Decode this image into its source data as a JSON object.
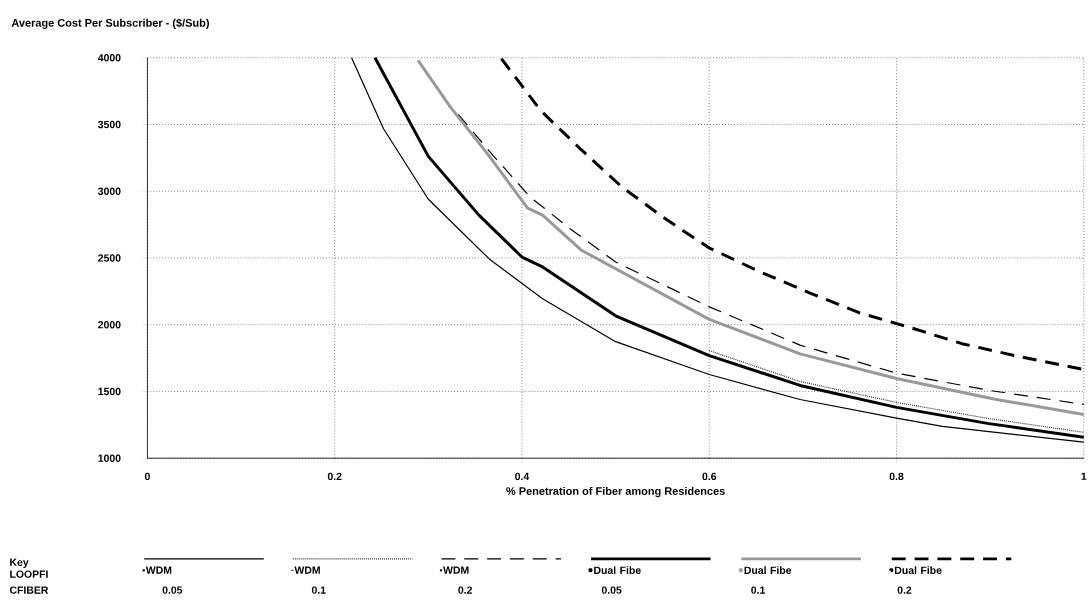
{
  "chart_data": {
    "type": "line",
    "ylabel": "Average Cost Per Subscriber - ($/Sub)",
    "xlabel": "% Penetration of Fiber among Residences",
    "xlim": [
      0,
      1
    ],
    "ylim": [
      1000,
      4000
    ],
    "xticks": [
      0,
      0.2,
      0.4,
      0.6,
      0.8,
      1
    ],
    "yticks": [
      1000,
      1500,
      2000,
      2500,
      3000,
      3500,
      4000
    ],
    "grid": true,
    "legend": "bottom",
    "annotations": [
      "Key",
      "LOOPFI",
      "CFIBER",
      "0.05",
      "0.1",
      "0.2",
      "0.05",
      "0.1",
      "0.2"
    ],
    "series": [
      {
        "name": "WDM",
        "color": "#000000",
        "line_style": "solid",
        "x": [
          0.218,
          0.252,
          0.3,
          0.365,
          0.422,
          0.5,
          0.6,
          0.697,
          0.8,
          0.849,
          1.0
        ],
        "values": [
          4000,
          3470,
          2940,
          2493,
          2194,
          1873,
          1627,
          1440,
          1300,
          1238,
          1120
        ]
      },
      {
        "name": "WDM",
        "color": "#000000",
        "line_style": "dotted",
        "x": [
          0.6,
          0.697,
          0.8,
          0.897,
          1.0
        ],
        "values": [
          1806,
          1575,
          1418,
          1299,
          1194
        ]
      },
      {
        "name": "WDM",
        "color": "#000000",
        "line_style": "dashed",
        "x": [
          0.332,
          0.369,
          0.409,
          0.452,
          0.5,
          0.6,
          0.697,
          0.8,
          0.9,
          1.0
        ],
        "values": [
          3575,
          3269,
          2955,
          2716,
          2470,
          2134,
          1847,
          1637,
          1507,
          1403
        ]
      },
      {
        "name": "Dual Fibe",
        "color": "#000000",
        "line_style": "solid",
        "x": [
          0.243,
          0.3,
          0.354,
          0.4,
          0.422,
          0.5,
          0.6,
          0.697,
          0.8,
          0.897,
          1.0
        ],
        "values": [
          4000,
          3261,
          2821,
          2507,
          2433,
          2067,
          1769,
          1545,
          1381,
          1261,
          1157
        ]
      },
      {
        "name": "Dual Fibe",
        "color": "#999999",
        "line_style": "solid",
        "x": [
          0.289,
          0.324,
          0.362,
          0.406,
          0.422,
          0.463,
          0.6,
          0.697,
          0.8,
          0.904,
          1.0
        ],
        "values": [
          3980,
          3627,
          3291,
          2873,
          2821,
          2560,
          2040,
          1782,
          1597,
          1443,
          1328
        ]
      },
      {
        "name": "Dual Fibe",
        "color": "#000000",
        "line_style": "dashed",
        "x": [
          0.378,
          0.42,
          0.463,
          0.507,
          0.552,
          0.6,
          0.652,
          0.707,
          0.76,
          0.815,
          0.87,
          0.926,
          1.0
        ],
        "values": [
          3993,
          3604,
          3313,
          3030,
          2799,
          2575,
          2403,
          2239,
          2090,
          1978,
          1858,
          1769,
          1664
        ]
      }
    ]
  }
}
